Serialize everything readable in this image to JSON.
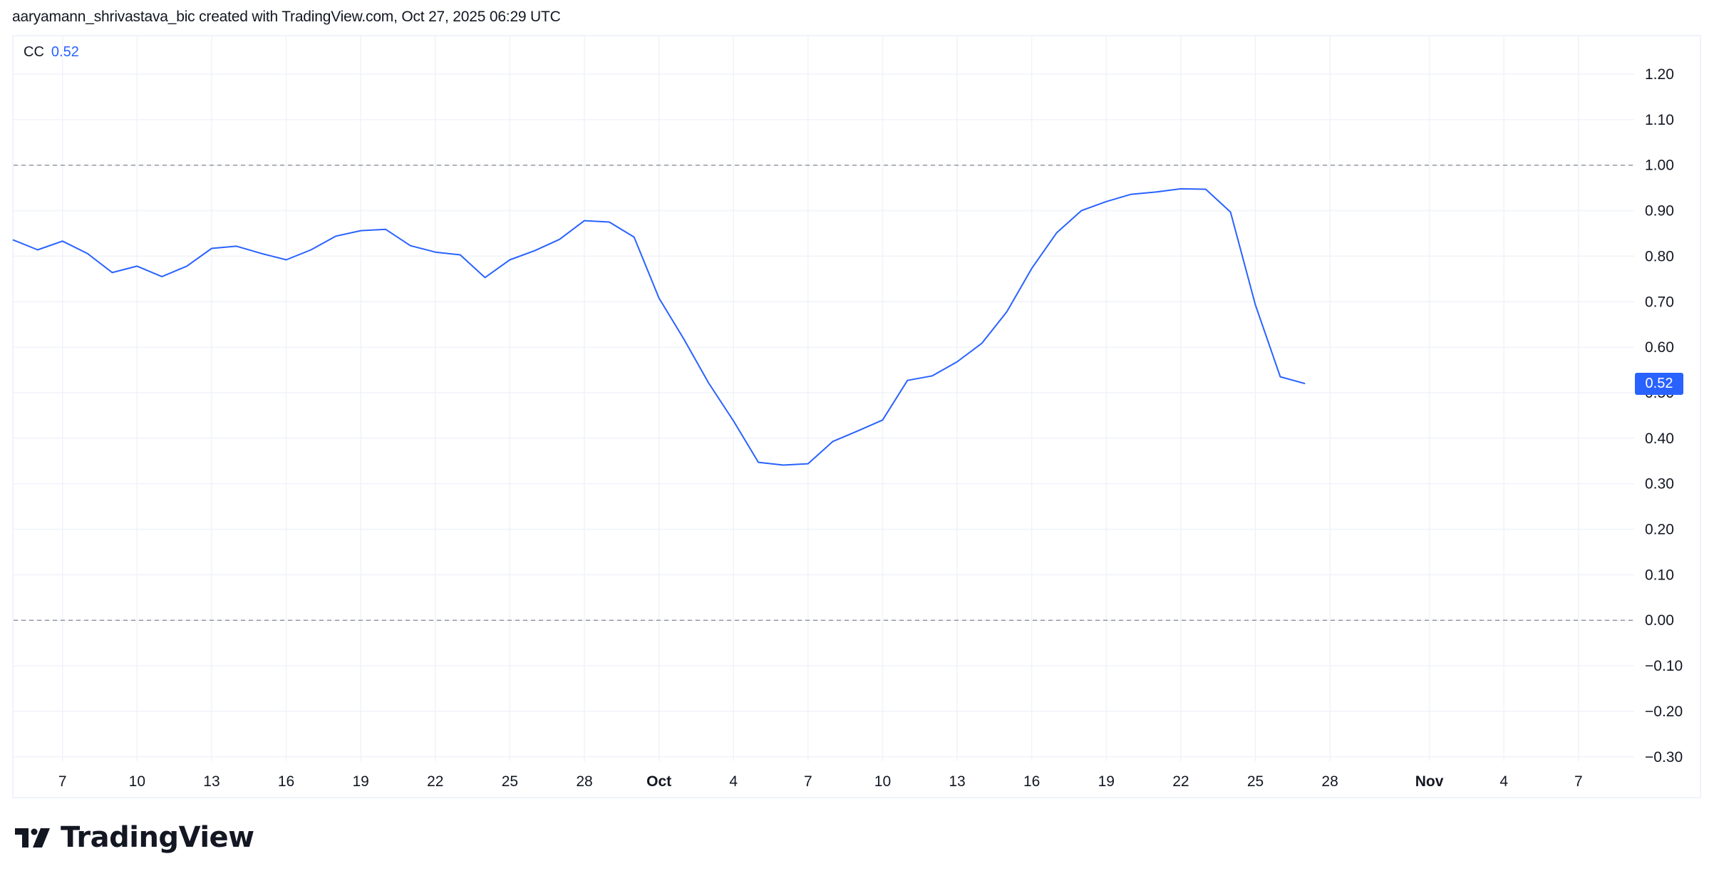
{
  "header": {
    "attribution": "aaryamann_shrivastava_bic created with TradingView.com, Oct 27, 2025 06:29 UTC"
  },
  "legend": {
    "symbol": "CC",
    "value": "0.52"
  },
  "price_badge": {
    "value": "0.52",
    "color": "#2962ff"
  },
  "footer": {
    "logo_text": "TradingView"
  },
  "colors": {
    "line": "#2962ff",
    "grid": "#f0f3fa",
    "reference_line": "#9598a1",
    "axis_text": "#131722"
  },
  "chart_data": {
    "type": "line",
    "title": "CC",
    "xlabel": "",
    "ylabel": "",
    "ylim": [
      -0.3,
      1.2
    ],
    "grid": true,
    "legend_position": "top-left",
    "y_ticks": [
      "1.20",
      "1.10",
      "1.00",
      "0.90",
      "0.80",
      "0.70",
      "0.60",
      "0.50",
      "0.40",
      "0.30",
      "0.20",
      "0.10",
      "0.00",
      "−0.10",
      "−0.20",
      "−0.30"
    ],
    "x_ticks": [
      {
        "label": "7",
        "bold": false
      },
      {
        "label": "10",
        "bold": false
      },
      {
        "label": "13",
        "bold": false
      },
      {
        "label": "16",
        "bold": false
      },
      {
        "label": "19",
        "bold": false
      },
      {
        "label": "22",
        "bold": false
      },
      {
        "label": "25",
        "bold": false
      },
      {
        "label": "28",
        "bold": false
      },
      {
        "label": "Oct",
        "bold": true
      },
      {
        "label": "4",
        "bold": false
      },
      {
        "label": "7",
        "bold": false
      },
      {
        "label": "10",
        "bold": false
      },
      {
        "label": "13",
        "bold": false
      },
      {
        "label": "16",
        "bold": false
      },
      {
        "label": "19",
        "bold": false
      },
      {
        "label": "22",
        "bold": false
      },
      {
        "label": "25",
        "bold": false
      },
      {
        "label": "28",
        "bold": false
      },
      {
        "label": "Nov",
        "bold": true
      },
      {
        "label": "4",
        "bold": false
      },
      {
        "label": "7",
        "bold": false
      }
    ],
    "reference_lines": [
      1.0,
      0.0
    ],
    "last_value": 0.52,
    "series": [
      {
        "name": "CC",
        "x": [
          "Sep 5",
          "Sep 6",
          "Sep 7",
          "Sep 8",
          "Sep 9",
          "Sep 10",
          "Sep 11",
          "Sep 12",
          "Sep 13",
          "Sep 14",
          "Sep 15",
          "Sep 16",
          "Sep 17",
          "Sep 18",
          "Sep 19",
          "Sep 20",
          "Sep 21",
          "Sep 22",
          "Sep 23",
          "Sep 24",
          "Sep 25",
          "Sep 26",
          "Sep 27",
          "Sep 28",
          "Sep 29",
          "Sep 30",
          "Oct 1",
          "Oct 2",
          "Oct 3",
          "Oct 4",
          "Oct 5",
          "Oct 6",
          "Oct 7",
          "Oct 8",
          "Oct 9",
          "Oct 10",
          "Oct 11",
          "Oct 12",
          "Oct 13",
          "Oct 14",
          "Oct 15",
          "Oct 16",
          "Oct 17",
          "Oct 18",
          "Oct 19",
          "Oct 20",
          "Oct 21",
          "Oct 22",
          "Oct 23",
          "Oct 24",
          "Oct 25",
          "Oct 26",
          "Oct 27"
        ],
        "values": [
          0.836,
          0.814,
          0.833,
          0.806,
          0.764,
          0.778,
          0.755,
          0.778,
          0.817,
          0.822,
          0.806,
          0.792,
          0.814,
          0.844,
          0.856,
          0.859,
          0.823,
          0.809,
          0.803,
          0.753,
          0.792,
          0.812,
          0.837,
          0.878,
          0.875,
          0.842,
          0.708,
          0.618,
          0.521,
          0.438,
          0.347,
          0.341,
          0.344,
          0.393,
          0.416,
          0.44,
          0.527,
          0.537,
          0.568,
          0.609,
          0.678,
          0.773,
          0.851,
          0.9,
          0.92,
          0.936,
          0.941,
          0.948,
          0.947,
          0.897,
          0.693,
          0.535,
          0.52
        ]
      }
    ]
  }
}
